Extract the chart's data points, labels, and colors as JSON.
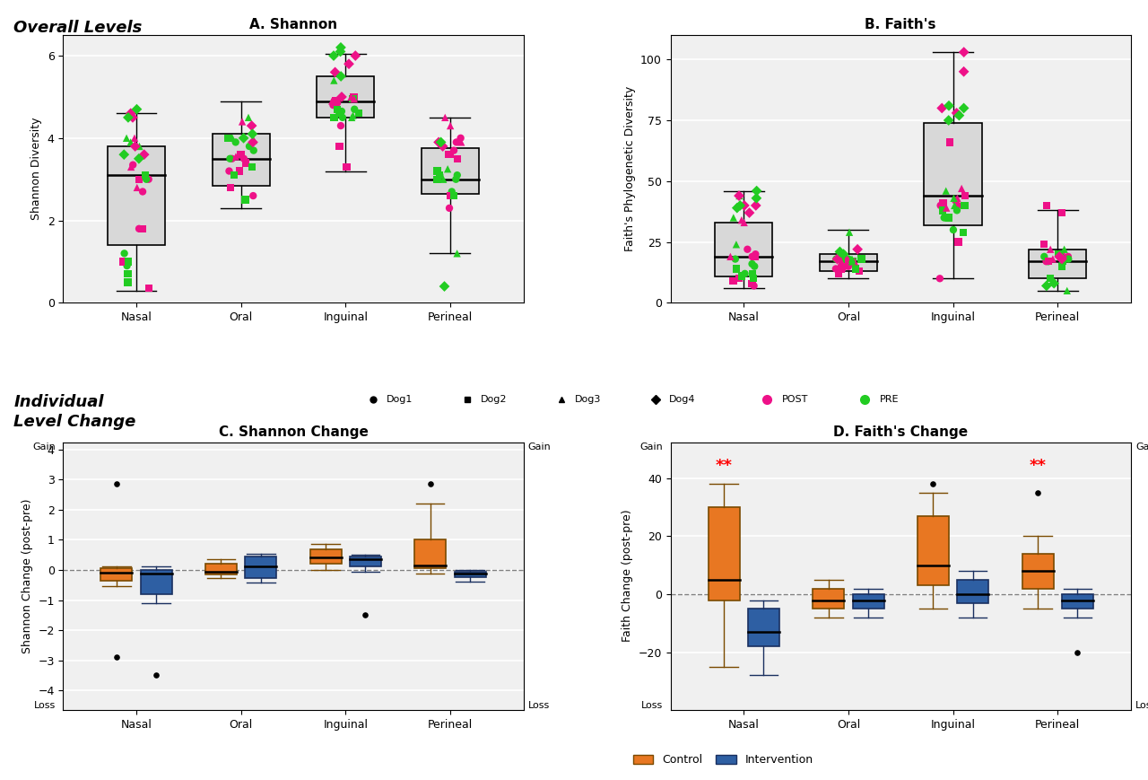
{
  "title_overall": "Overall Levels",
  "title_individual": "Individual\nLevel Change",
  "title_A": "A. Shannon",
  "title_B": "B. Faith's",
  "title_C": "C. Shannon Change",
  "title_D": "D. Faith's Change",
  "sites": [
    "Nasal",
    "Oral",
    "Inguinal",
    "Perineal"
  ],
  "ylabel_A": "Shannon Diversity",
  "ylabel_B": "Faith's Phylogenetic Diversity",
  "ylabel_C": "Shannon Change (post-pre)",
  "ylabel_D": "Faith Change (post-pre)",
  "ylim_A": [
    0,
    6.5
  ],
  "ylim_B": [
    0,
    110
  ],
  "yticks_A": [
    0,
    2,
    4,
    6
  ],
  "yticks_B": [
    0,
    25,
    50,
    75,
    100
  ],
  "bg_color": "#f0f0f0",
  "box_color": "#d8d8d8",
  "post_color": "#ee1188",
  "pre_color": "#22cc22",
  "control_color": "#e87722",
  "intervention_color": "#2e5fa3",
  "shannon_boxes": {
    "Nasal": {
      "q1": 1.4,
      "median": 3.1,
      "q3": 3.8,
      "whislo": 0.3,
      "whishi": 4.6
    },
    "Oral": {
      "q1": 2.85,
      "median": 3.5,
      "q3": 4.1,
      "whislo": 2.3,
      "whishi": 4.9
    },
    "Inguinal": {
      "q1": 4.5,
      "median": 4.9,
      "q3": 5.5,
      "whislo": 3.2,
      "whishi": 6.05
    },
    "Perineal": {
      "q1": 2.65,
      "median": 3.0,
      "q3": 3.75,
      "whislo": 1.2,
      "whishi": 4.5
    }
  },
  "faiths_boxes": {
    "Nasal": {
      "q1": 11,
      "median": 19,
      "q3": 33,
      "whislo": 6,
      "whishi": 46
    },
    "Oral": {
      "q1": 13,
      "median": 17,
      "q3": 20,
      "whislo": 10,
      "whishi": 30
    },
    "Inguinal": {
      "q1": 32,
      "median": 44,
      "q3": 74,
      "whislo": 10,
      "whishi": 103
    },
    "Perineal": {
      "q1": 10,
      "median": 17,
      "q3": 22,
      "whislo": 5,
      "whishi": 38
    }
  },
  "shannon_change_control": {
    "Nasal": {
      "q1": -0.35,
      "median": -0.08,
      "q3": 0.05,
      "whislo": -0.55,
      "whishi": 0.12,
      "outliers": [
        2.85,
        -2.9
      ]
    },
    "Oral": {
      "q1": -0.15,
      "median": -0.05,
      "q3": 0.2,
      "whislo": -0.28,
      "whishi": 0.35,
      "outliers": []
    },
    "Inguinal": {
      "q1": 0.2,
      "median": 0.42,
      "q3": 0.7,
      "whislo": 0.0,
      "whishi": 0.85,
      "outliers": []
    },
    "Perineal": {
      "q1": 0.05,
      "median": 0.15,
      "q3": 1.0,
      "whislo": -0.12,
      "whishi": 2.2,
      "outliers": [
        2.85
      ]
    }
  },
  "shannon_change_intervention": {
    "Nasal": {
      "q1": -0.8,
      "median": -0.12,
      "q3": 0.0,
      "whislo": -1.1,
      "whishi": 0.12,
      "outliers": [
        -3.5
      ]
    },
    "Oral": {
      "q1": -0.28,
      "median": 0.12,
      "q3": 0.45,
      "whislo": -0.42,
      "whishi": 0.55,
      "outliers": []
    },
    "Inguinal": {
      "q1": 0.12,
      "median": 0.35,
      "q3": 0.45,
      "whislo": -0.05,
      "whishi": 0.5,
      "outliers": [
        -1.5
      ]
    },
    "Perineal": {
      "q1": -0.25,
      "median": -0.12,
      "q3": -0.05,
      "whislo": -0.38,
      "whishi": 0.0,
      "outliers": []
    }
  },
  "faiths_change_control": {
    "Nasal": {
      "q1": -2,
      "median": 5,
      "q3": 30,
      "whislo": -25,
      "whishi": 38,
      "outliers": []
    },
    "Oral": {
      "q1": -5,
      "median": -2,
      "q3": 2,
      "whislo": -8,
      "whishi": 5,
      "outliers": []
    },
    "Inguinal": {
      "q1": 3,
      "median": 10,
      "q3": 27,
      "whislo": -5,
      "whishi": 35,
      "outliers": [
        38
      ]
    },
    "Perineal": {
      "q1": 2,
      "median": 8,
      "q3": 14,
      "whislo": -5,
      "whishi": 20,
      "outliers": [
        35
      ]
    }
  },
  "faiths_change_intervention": {
    "Nasal": {
      "q1": -18,
      "median": -13,
      "q3": -5,
      "whislo": -28,
      "whishi": -2,
      "outliers": []
    },
    "Oral": {
      "q1": -5,
      "median": -2,
      "q3": 0,
      "whislo": -8,
      "whishi": 2,
      "outliers": []
    },
    "Inguinal": {
      "q1": -3,
      "median": 0,
      "q3": 5,
      "whislo": -8,
      "whishi": 8,
      "outliers": []
    },
    "Perineal": {
      "q1": -5,
      "median": -2,
      "q3": 0,
      "whislo": -8,
      "whishi": 2,
      "outliers": [
        -20
      ]
    }
  },
  "shannon_scatter": {
    "Nasal": {
      "post": {
        "circle": [
          3.35,
          3.0,
          2.7,
          1.8
        ],
        "square": [
          3.0,
          1.8,
          1.0,
          0.35
        ],
        "triangle": [
          3.3,
          2.8,
          4.0
        ],
        "diamond": [
          4.6,
          4.5,
          3.8,
          3.6
        ]
      },
      "pre": {
        "circle": [
          0.9,
          1.0,
          1.2,
          3.0
        ],
        "square": [
          3.1,
          1.0,
          0.5,
          0.7
        ],
        "triangle": [
          3.9,
          3.8,
          4.0
        ],
        "diamond": [
          4.5,
          4.7,
          3.5,
          3.6
        ]
      }
    },
    "Oral": {
      "post": {
        "circle": [
          3.5,
          3.5,
          3.2,
          2.6
        ],
        "square": [
          3.4,
          3.2,
          2.8,
          3.6
        ],
        "triangle": [
          3.55,
          3.6,
          4.4
        ],
        "diamond": [
          3.9,
          4.3
        ]
      },
      "pre": {
        "circle": [
          3.7,
          3.8,
          3.9,
          3.5
        ],
        "square": [
          4.0,
          3.3,
          3.1,
          2.5
        ],
        "triangle": [
          4.0,
          3.95,
          4.5
        ],
        "diamond": [
          4.0,
          4.1
        ]
      }
    },
    "Inguinal": {
      "post": {
        "circle": [
          4.9,
          4.85,
          4.8,
          4.3
        ],
        "square": [
          3.8,
          3.3,
          4.9,
          5.0
        ],
        "triangle": [
          4.9,
          4.95,
          5.0
        ],
        "diamond": [
          5.0,
          5.6,
          6.0,
          5.8
        ]
      },
      "pre": {
        "circle": [
          4.5,
          4.6,
          4.7,
          4.65
        ],
        "square": [
          4.5,
          4.6,
          4.95,
          4.7
        ],
        "triangle": [
          4.5,
          4.55,
          5.4
        ],
        "diamond": [
          5.5,
          6.0,
          6.1,
          6.2
        ]
      }
    },
    "Perineal": {
      "post": {
        "circle": [
          3.9,
          3.7,
          4.0,
          2.3
        ],
        "square": [
          3.5,
          3.6,
          2.6,
          3.6
        ],
        "triangle": [
          4.5,
          4.3,
          3.9
        ],
        "diamond": [
          3.8,
          3.9
        ]
      },
      "pre": {
        "circle": [
          3.1,
          3.0,
          3.1,
          2.7
        ],
        "square": [
          3.2,
          3.1,
          3.0,
          2.6
        ],
        "triangle": [
          3.0,
          3.25,
          1.2
        ],
        "diamond": [
          0.4,
          3.9
        ]
      }
    }
  },
  "faiths_scatter": {
    "Nasal": {
      "post": {
        "circle": [
          20,
          19,
          22,
          7
        ],
        "square": [
          8,
          19,
          10,
          9
        ],
        "triangle": [
          19,
          33,
          34
        ],
        "diamond": [
          40,
          44,
          40,
          37
        ]
      },
      "pre": {
        "circle": [
          16,
          18,
          15,
          12
        ],
        "square": [
          14,
          11,
          12,
          10
        ],
        "triangle": [
          24,
          35,
          44
        ],
        "diamond": [
          40,
          46,
          43,
          39
        ]
      }
    },
    "Oral": {
      "post": {
        "circle": [
          15,
          16,
          14,
          14
        ],
        "square": [
          13,
          14,
          12,
          17
        ],
        "triangle": [
          17,
          17,
          20
        ],
        "diamond": [
          18,
          22
        ]
      },
      "pre": {
        "circle": [
          17,
          18,
          18,
          17
        ],
        "square": [
          18,
          18,
          17,
          14
        ],
        "triangle": [
          18,
          17,
          29
        ],
        "diamond": [
          20,
          21
        ]
      }
    },
    "Inguinal": {
      "post": {
        "circle": [
          40,
          42,
          40,
          10
        ],
        "square": [
          25,
          66,
          44,
          41
        ],
        "triangle": [
          39,
          43,
          47
        ],
        "diamond": [
          80,
          95,
          103,
          78
        ]
      },
      "pre": {
        "circle": [
          30,
          35,
          38,
          35
        ],
        "square": [
          35,
          38,
          40,
          29
        ],
        "triangle": [
          40,
          43,
          46
        ],
        "diamond": [
          75,
          81,
          77,
          80
        ]
      }
    },
    "Perineal": {
      "post": {
        "circle": [
          19,
          18,
          20,
          17
        ],
        "square": [
          40,
          37,
          24,
          17
        ],
        "triangle": [
          20,
          22,
          18
        ],
        "diamond": [
          18,
          19
        ]
      },
      "pre": {
        "circle": [
          17,
          18,
          20,
          19
        ],
        "square": [
          20,
          17,
          15,
          10
        ],
        "triangle": [
          22,
          20,
          5
        ],
        "diamond": [
          7,
          8
        ]
      }
    }
  },
  "sig_D": {
    "Nasal": "**",
    "Perineal": "**"
  }
}
